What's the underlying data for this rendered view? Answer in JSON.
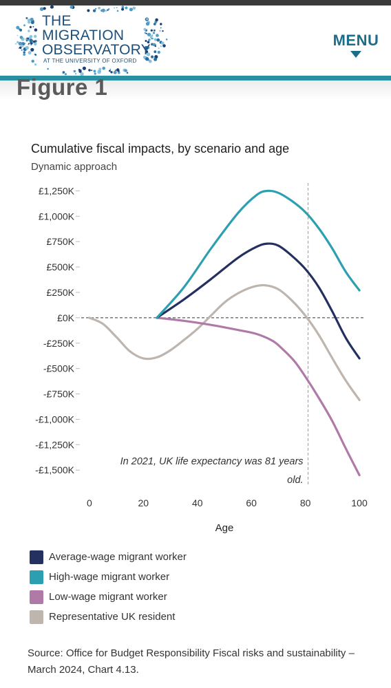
{
  "header": {
    "logo_lines": [
      "THE",
      "MIGRATION",
      "OBSERVATORY"
    ],
    "logo_sub": "AT THE UNIVERSITY OF OXFORD",
    "menu_label": "MENU",
    "menu_icon": "caret-down-icon",
    "colors": {
      "brand": "#1c4f7a",
      "accent": "#2a8fa3"
    }
  },
  "figure_label": "Figure 1",
  "chart_data": {
    "type": "line",
    "title": "Cumulative fiscal impacts, by scenario and age",
    "subtitle": "Dynamic approach",
    "xlabel": "Age",
    "ylabel": "",
    "xlim": [
      -2,
      101
    ],
    "ylim": [
      -1600,
      1300
    ],
    "x_ticks": [
      0,
      20,
      40,
      60,
      80,
      100
    ],
    "y_ticks": [
      -1500,
      -1250,
      -1000,
      -750,
      -500,
      -250,
      0,
      250,
      500,
      750,
      1000,
      1250
    ],
    "y_tick_labels": [
      "-£1,500K",
      "-£1,250K",
      "-£1,000K",
      "-£750K",
      "-£500K",
      "-£250K",
      "£0K",
      "£250K",
      "£500K",
      "£750K",
      "£1,000K",
      "£1,250K"
    ],
    "grid": false,
    "legend_position": "bottom",
    "series": [
      {
        "name": "Average-wage migrant worker",
        "color": "#24305f",
        "x": [
          25,
          35,
          45,
          55,
          62,
          66,
          70,
          75,
          80,
          85,
          90,
          95,
          100
        ],
        "y": [
          0,
          180,
          380,
          590,
          700,
          730,
          710,
          610,
          480,
          300,
          60,
          -200,
          -400
        ]
      },
      {
        "name": "High-wage migrant worker",
        "color": "#2c9fb0",
        "x": [
          25,
          35,
          45,
          55,
          62,
          66,
          70,
          75,
          80,
          85,
          90,
          95,
          100
        ],
        "y": [
          0,
          300,
          680,
          1030,
          1210,
          1250,
          1230,
          1150,
          1040,
          880,
          680,
          450,
          270
        ]
      },
      {
        "name": "Low-wage migrant worker",
        "color": "#b07aa8",
        "x": [
          25,
          35,
          45,
          55,
          62,
          68,
          72,
          76,
          80,
          85,
          90,
          95,
          100
        ],
        "y": [
          0,
          -30,
          -70,
          -120,
          -160,
          -230,
          -320,
          -430,
          -580,
          -790,
          -1020,
          -1290,
          -1550
        ]
      },
      {
        "name": "Representative UK resident",
        "color": "#bdb5ae",
        "x": [
          0,
          5,
          10,
          15,
          20,
          25,
          30,
          35,
          40,
          45,
          50,
          55,
          60,
          65,
          70,
          75,
          80,
          85,
          90,
          95,
          100
        ],
        "y": [
          0,
          -60,
          -190,
          -330,
          -400,
          -390,
          -320,
          -220,
          -110,
          20,
          150,
          240,
          300,
          320,
          280,
          170,
          20,
          -170,
          -400,
          -620,
          -810
        ]
      }
    ],
    "reference_line": {
      "x": 81
    },
    "annotation": "In 2021, UK life expectancy was 81 years old.",
    "source": "Source: Office for Budget Responsibility Fiscal risks and sustainability – March 2024, Chart 4.13."
  }
}
